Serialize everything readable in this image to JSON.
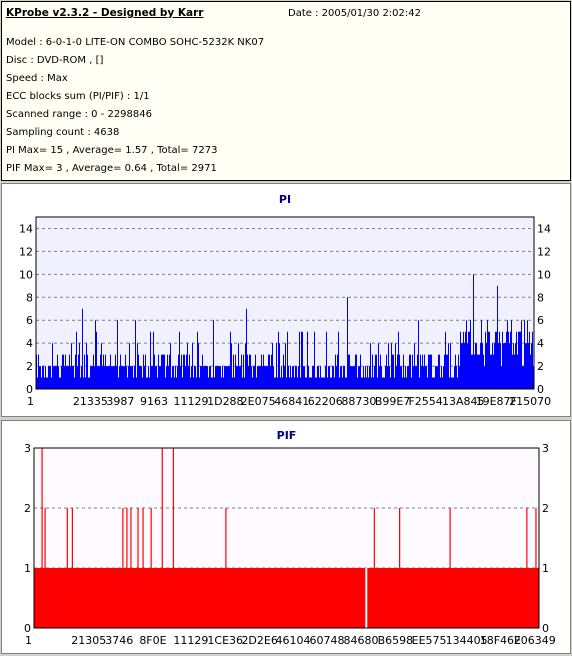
{
  "header": {
    "title": "KProbe v2.3.2 - Designed by Karr",
    "date": "Date : 2005/01/30 2:02:42",
    "lines": [
      "Model : 6-0-1-0 LITE-ON COMBO SOHC-5232K NK07",
      "Disc : DVD-ROM ,  []",
      "Speed : Max",
      "ECC blocks sum (PI/PIF) : 1/1",
      "Scanned range : 0 - 2298846",
      "Sampling count : 4638",
      "PI Max= 15 , Average= 1.57 , Total= 7273",
      "PIF Max= 3 , Average= 0.64 , Total= 2971"
    ]
  },
  "chart_data": [
    {
      "type": "bar",
      "title": "PI",
      "ylim": [
        0,
        15
      ],
      "yticks": [
        0,
        2,
        4,
        6,
        8,
        10,
        12,
        14
      ],
      "xticks": [
        "1",
        "21335",
        "3987",
        "9163",
        "11129",
        "1D288",
        "2E075",
        "46841",
        "62206",
        "88730",
        "B99E7",
        "F2554",
        "13A845",
        "19E87F",
        "215070"
      ],
      "grid": true,
      "color": "#0000ff",
      "background": "#f0f0ff",
      "base": 1.6,
      "spike_values": [
        4,
        7,
        5,
        4,
        5,
        6,
        4,
        5,
        4,
        3,
        6,
        5,
        4,
        7,
        4,
        5,
        3,
        4,
        6,
        5,
        4,
        8,
        5,
        4,
        6,
        4,
        5,
        3,
        4,
        4,
        5,
        6,
        4,
        5,
        4,
        7,
        9,
        10,
        8,
        9,
        10,
        11,
        9,
        10
      ],
      "max": 15,
      "average": 1.57
    },
    {
      "type": "bar",
      "title": "PIF",
      "ylim": [
        0,
        3
      ],
      "yticks": [
        0,
        1,
        2,
        3
      ],
      "xticks": [
        "1",
        "21305",
        "3746",
        "8F0E",
        "11129",
        "1CE36",
        "2D2E6",
        "46104",
        "60748",
        "84680",
        "B6598",
        "EE575",
        "134405",
        "18F46E",
        "206349"
      ],
      "grid": true,
      "color": "#ff0000",
      "background": "#fffaff",
      "base": 1,
      "spikes": [
        {
          "x": 0.016,
          "value": 3
        },
        {
          "x": 0.022,
          "value": 2
        },
        {
          "x": 0.066,
          "value": 2
        },
        {
          "x": 0.076,
          "value": 2
        },
        {
          "x": 0.176,
          "value": 2
        },
        {
          "x": 0.184,
          "value": 2
        },
        {
          "x": 0.192,
          "value": 2
        },
        {
          "x": 0.206,
          "value": 2
        },
        {
          "x": 0.216,
          "value": 2
        },
        {
          "x": 0.232,
          "value": 2
        },
        {
          "x": 0.254,
          "value": 3
        },
        {
          "x": 0.276,
          "value": 3
        },
        {
          "x": 0.38,
          "value": 2
        },
        {
          "x": 0.674,
          "value": 2
        },
        {
          "x": 0.724,
          "value": 2
        },
        {
          "x": 0.824,
          "value": 2
        },
        {
          "x": 0.976,
          "value": 2
        },
        {
          "x": 0.994,
          "value": 2
        }
      ],
      "gap_at": 0.656,
      "max": 3,
      "average": 0.64
    }
  ]
}
